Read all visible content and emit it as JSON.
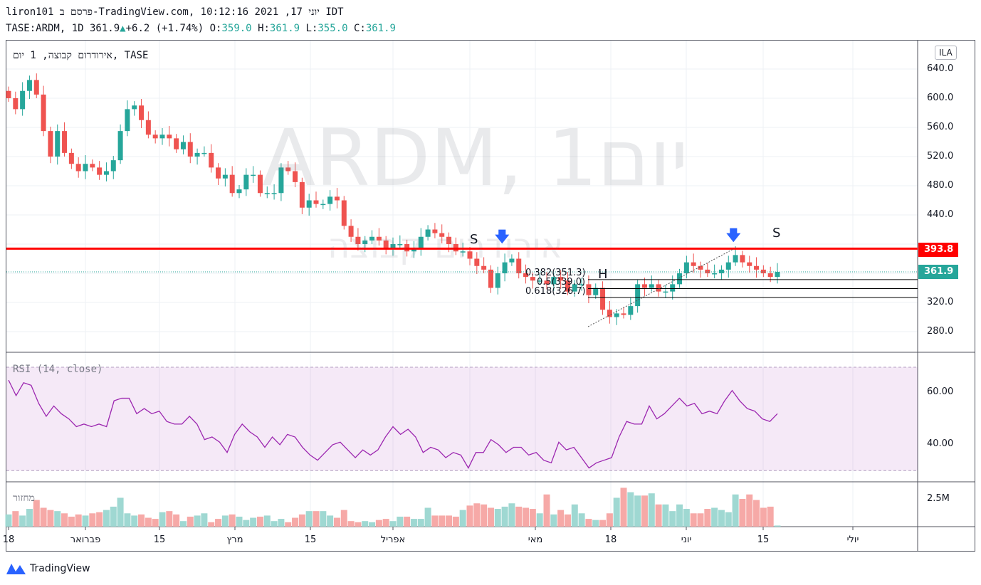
{
  "header": {
    "line1": "liron101 פרסם ב-TradingView.com, יוני  17, 2021 10:12:16 IDT",
    "symbol": "TASE:ARDM, 1D 361.9",
    "change": "+6.2 (+1.74%)",
    "o_label": "O:",
    "o": "359.0",
    "h_label": "H:",
    "h": "361.9",
    "l_label": "L:",
    "l": "355.0",
    "c_label": "C:",
    "c": "361.9"
  },
  "pane": {
    "title": "אירודרום קבוצה, 1 יום, TASE",
    "watermark": "ARDM, 1יום",
    "watermark2": "אירודרום קבוצה",
    "currency": "ILA"
  },
  "annotations": {
    "s1": "S",
    "s2": "S",
    "h": "H",
    "fib1": "0.382(351.3)",
    "fib2": "0.5(339.0)",
    "fib3": "0.618(326.7)"
  },
  "price_labels": {
    "resistance": "393.8",
    "last": "361.9"
  },
  "colors": {
    "up": "#26a69a",
    "down": "#ef5350",
    "resistance": "#ff0000",
    "rsi": "#9c27b0"
  },
  "rsi": {
    "title": "RSI (14, close)",
    "ticks": [
      "60.00",
      "40.00"
    ],
    "values": [
      65,
      59,
      64,
      63,
      56,
      51,
      55,
      52,
      50,
      47,
      48,
      47,
      48,
      47,
      57,
      58,
      58,
      52,
      54,
      52,
      53,
      49,
      48,
      48,
      51,
      48,
      42,
      43,
      41,
      37,
      44,
      48,
      45,
      43,
      39,
      43,
      40,
      44,
      43,
      39,
      36,
      34,
      37,
      40,
      41,
      38,
      35,
      38,
      36,
      38,
      43,
      47,
      44,
      46,
      43,
      37,
      39,
      38,
      35,
      37,
      36,
      31,
      37,
      37,
      42,
      40,
      37,
      39,
      39,
      36,
      37,
      34,
      33,
      41,
      38,
      39,
      35,
      31,
      33,
      34,
      35,
      43,
      49,
      48,
      48,
      55,
      50,
      52,
      55,
      58,
      55,
      56,
      52,
      53,
      52,
      57,
      61,
      57,
      54,
      53,
      50,
      49,
      52
    ]
  },
  "volume": {
    "title": "מחזור",
    "tick": "2.5M"
  },
  "price_ticks": [
    "640.0",
    "600.0",
    "560.0",
    "520.0",
    "480.0",
    "440.0",
    "320.0",
    "280.0"
  ],
  "time_axis": [
    "18",
    "פברואר",
    "15",
    "מרץ",
    "15",
    "אפריל",
    "מאי",
    "18",
    "יוני",
    "15",
    "יולי"
  ],
  "brand": "TradingView",
  "chart_data": {
    "type": "candlestick",
    "ylim": [
      270,
      650
    ],
    "close": [
      600,
      585,
      610,
      625,
      605,
      555,
      520,
      555,
      525,
      510,
      500,
      510,
      505,
      495,
      500,
      515,
      555,
      585,
      590,
      570,
      550,
      545,
      550,
      545,
      530,
      540,
      520,
      525,
      525,
      505,
      490,
      495,
      470,
      475,
      495,
      495,
      470,
      470,
      470,
      505,
      500,
      485,
      450,
      460,
      455,
      455,
      465,
      460,
      425,
      410,
      400,
      405,
      410,
      405,
      395,
      400,
      400,
      390,
      395,
      410,
      420,
      415,
      410,
      400,
      390,
      390,
      380,
      370,
      365,
      340,
      360,
      375,
      380,
      360,
      355,
      350,
      350,
      345,
      355,
      350,
      335,
      345,
      345,
      330,
      340,
      310,
      300,
      305,
      303,
      315,
      345,
      340,
      345,
      335,
      335,
      345,
      360,
      375,
      370,
      365,
      360,
      360,
      365,
      375,
      385,
      375,
      370,
      365,
      360,
      355,
      361.9
    ],
    "volume_m": [
      1.1,
      1.4,
      1.0,
      1.6,
      2.4,
      1.7,
      1.5,
      1.4,
      1.2,
      0.9,
      1.1,
      1.0,
      1.2,
      1.3,
      1.5,
      1.8,
      2.6,
      1.2,
      1.0,
      1.1,
      0.8,
      0.7,
      1.3,
      1.4,
      1.1,
      0.5,
      0.9,
      1.0,
      1.2,
      0.4,
      0.7,
      1.0,
      1.1,
      0.9,
      0.6,
      0.8,
      0.9,
      1.0,
      0.5,
      0.7,
      0.4,
      0.8,
      1.1,
      1.4,
      1.4,
      1.4,
      1.0,
      0.8,
      1.5,
      0.5,
      0.4,
      0.5,
      0.4,
      0.6,
      0.7,
      0.5,
      0.9,
      0.9,
      0.7,
      0.7,
      1.7,
      1.0,
      1.0,
      1.0,
      0.9,
      1.5,
      1.9,
      2.1,
      2.0,
      1.7,
      1.6,
      1.8,
      2.1,
      1.8,
      1.7,
      1.6,
      1.2,
      2.9,
      1.1,
      1.5,
      1.1,
      2.0,
      1.2,
      0.7,
      0.6,
      0.6,
      1.2,
      2.6,
      3.5,
      3.1,
      2.8,
      2.8,
      3.0,
      2.0,
      2.0,
      1.4,
      2.0,
      1.6,
      1.2,
      1.2,
      1.6,
      1.7,
      1.5,
      1.3,
      2.9,
      2.5,
      2.9,
      2.4,
      1.7,
      1.8,
      0.1
    ]
  }
}
